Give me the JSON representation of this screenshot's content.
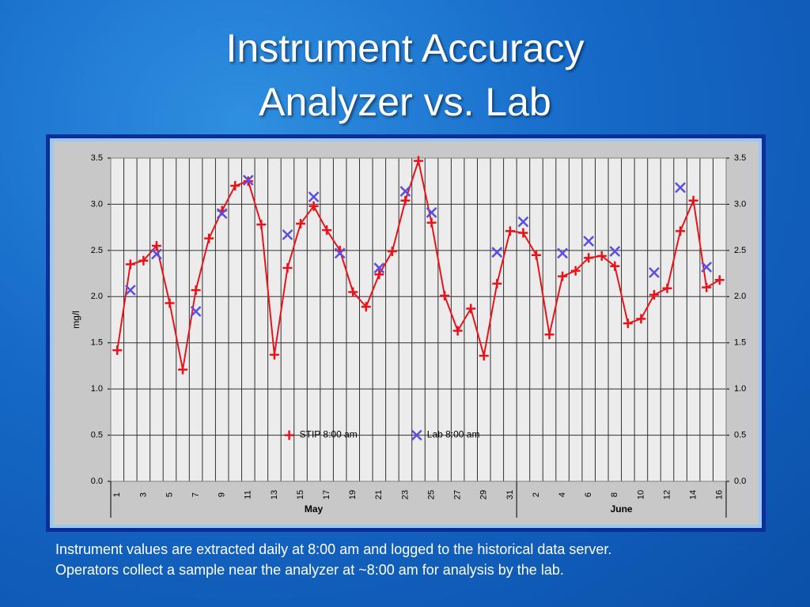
{
  "slide_title": [
    "Instrument Accuracy",
    "Analyzer vs. Lab"
  ],
  "caption": [
    "Instrument values are extracted daily at 8:00 am and logged to the historical data server.",
    "Operators collect a sample near the analyzer at ~8:00 am for analysis by the lab."
  ],
  "chart_data": {
    "type": "line",
    "y_label": "mg/l",
    "categories": [
      "1",
      null,
      "3",
      null,
      "5",
      null,
      "7",
      null,
      "9",
      null,
      "11",
      null,
      "13",
      null,
      "15",
      null,
      "17",
      null,
      "19",
      null,
      "21",
      null,
      "23",
      null,
      "25",
      null,
      "27",
      null,
      "29",
      null,
      "31",
      null,
      "2",
      null,
      "4",
      null,
      "6",
      null,
      "8",
      null,
      "10",
      null,
      "12",
      null,
      "14",
      null,
      "16"
    ],
    "x_groups": [
      "May",
      "June"
    ],
    "series": [
      {
        "name": "STIP 8:00 am",
        "color": "#e8141c",
        "marker": "plus",
        "line": true,
        "values": [
          1.42,
          2.35,
          2.39,
          2.55,
          1.93,
          1.21,
          2.07,
          2.63,
          2.93,
          3.2,
          3.25,
          2.78,
          1.37,
          2.31,
          2.79,
          2.98,
          2.72,
          2.5,
          2.05,
          1.89,
          2.24,
          2.49,
          3.04,
          3.47,
          2.8,
          2.01,
          1.63,
          1.87,
          1.36,
          2.14,
          2.71,
          2.69,
          2.45,
          1.59,
          2.22,
          2.28,
          2.42,
          2.44,
          2.33,
          1.71,
          1.76,
          2.02,
          2.09,
          2.71,
          3.04,
          2.1,
          2.18
        ]
      },
      {
        "name": "Lab 8:00 am",
        "color": "#5a4fe0",
        "marker": "x",
        "line": false,
        "values": [
          null,
          2.07,
          null,
          2.46,
          null,
          null,
          1.84,
          null,
          2.9,
          null,
          3.26,
          null,
          null,
          2.67,
          null,
          3.08,
          null,
          2.47,
          null,
          null,
          2.31,
          null,
          3.14,
          null,
          2.91,
          null,
          null,
          null,
          null,
          2.48,
          null,
          2.81,
          null,
          null,
          2.47,
          null,
          2.6,
          null,
          2.49,
          null,
          null,
          2.26,
          null,
          3.18,
          null,
          2.32,
          null
        ]
      }
    ],
    "ylim": [
      0,
      3.5
    ],
    "yticks": [
      {
        "value": 0,
        "label": "0.0"
      },
      0.5,
      {
        "value": 1,
        "label": "1.0"
      },
      1.5,
      {
        "value": 2,
        "label": "2.0"
      },
      2.5,
      {
        "value": 3,
        "label": "3.0"
      },
      3.5
    ],
    "y2lim": [
      0,
      3.5
    ],
    "y2ticks": [
      {
        "value": 0,
        "label": "0.0"
      },
      0.5,
      {
        "value": 1,
        "label": "1.0"
      },
      1.5,
      {
        "value": 2,
        "label": "2.0"
      },
      2.5,
      {
        "value": 3,
        "label": "3.0"
      },
      3.5
    ],
    "grid": true,
    "legend": "lower-center"
  }
}
